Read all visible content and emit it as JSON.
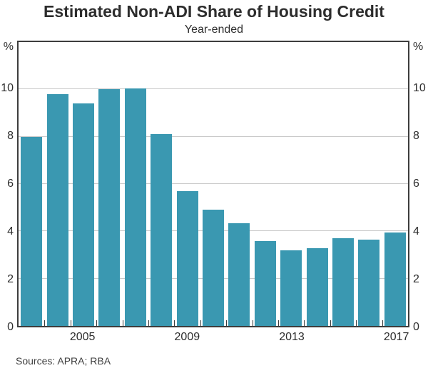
{
  "colors": {
    "bar": "#3A98B1",
    "gridline": "#C9C9C9",
    "frame": "#3D3D3D",
    "text": "#2D2D2D"
  },
  "chart_data": {
    "type": "bar",
    "title": "Estimated Non-ADI Share of Housing Credit",
    "subtitle": "Year-ended",
    "unit_left": "%",
    "unit_right": "%",
    "categories": [
      "2003",
      "2004",
      "2005",
      "2006",
      "2007",
      "2008",
      "2009",
      "2010",
      "2011",
      "2012",
      "2013",
      "2014",
      "2015",
      "2016",
      "2017"
    ],
    "values": [
      8.0,
      9.8,
      9.4,
      10.0,
      10.05,
      8.1,
      5.7,
      4.9,
      4.35,
      3.6,
      3.2,
      3.3,
      3.7,
      3.65,
      3.95
    ],
    "ylim": [
      0,
      12
    ],
    "yticks": [
      0,
      2,
      4,
      6,
      8,
      10
    ],
    "xtick_labels": [
      "2005",
      "2009",
      "2013",
      "2017"
    ],
    "grid": true,
    "legend_position": "none",
    "source_note": "Sources: APRA; RBA"
  }
}
